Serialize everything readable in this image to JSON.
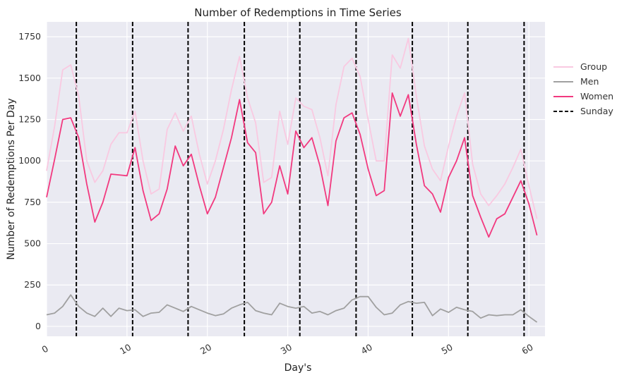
{
  "chart_data": {
    "type": "line",
    "title": "Number of Redemptions in Time Series",
    "xlabel": "Day's",
    "ylabel": "Number of Redemptions Per Day",
    "xlim": [
      0,
      62
    ],
    "ylim": [
      -60,
      1840
    ],
    "xticks": [
      0,
      10,
      20,
      30,
      40,
      50,
      60
    ],
    "yticks": [
      0,
      250,
      500,
      750,
      1000,
      1250,
      1500,
      1750
    ],
    "grid": true,
    "legend_position": "right",
    "background": "#EAEAF2",
    "sunday_label": "Sunday",
    "sundays": [
      3.7,
      10.7,
      17.6,
      24.6,
      31.5,
      38.5,
      45.5,
      52.4,
      59.4
    ],
    "series": [
      {
        "name": "Group",
        "color": "#F9C9E1",
        "values": [
          940,
          1210,
          1550,
          1580,
          1390,
          1000,
          870,
          940,
          1100,
          1170,
          1170,
          1300,
          1000,
          800,
          830,
          1190,
          1290,
          1180,
          1270,
          1040,
          860,
          1000,
          1190,
          1430,
          1630,
          1380,
          1230,
          870,
          900,
          1300,
          1100,
          1380,
          1330,
          1310,
          1140,
          910,
          1340,
          1570,
          1620,
          1510,
          1250,
          1000,
          1000,
          1640,
          1560,
          1740,
          1390,
          1090,
          950,
          880,
          1090,
          1270,
          1410,
          980,
          800,
          730,
          790,
          860,
          960,
          1070,
          850,
          650
        ]
      },
      {
        "name": "Men",
        "color": "#A0A0A0",
        "values": [
          70,
          80,
          120,
          190,
          120,
          80,
          60,
          110,
          60,
          110,
          95,
          100,
          60,
          80,
          85,
          130,
          110,
          90,
          120,
          100,
          80,
          65,
          75,
          110,
          130,
          145,
          95,
          80,
          70,
          140,
          120,
          110,
          120,
          80,
          90,
          70,
          95,
          110,
          160,
          180,
          180,
          115,
          70,
          80,
          130,
          150,
          140,
          145,
          65,
          105,
          85,
          115,
          100,
          90,
          50,
          70,
          65,
          70,
          70,
          100,
          60,
          25
        ]
      },
      {
        "name": "Women",
        "color": "#F2397F",
        "values": [
          780,
          1010,
          1250,
          1260,
          1140,
          860,
          630,
          750,
          920,
          915,
          910,
          1080,
          820,
          640,
          680,
          830,
          1090,
          970,
          1040,
          850,
          680,
          780,
          960,
          1140,
          1370,
          1110,
          1050,
          680,
          750,
          970,
          800,
          1180,
          1080,
          1140,
          970,
          730,
          1120,
          1260,
          1290,
          1160,
          950,
          790,
          820,
          1410,
          1270,
          1400,
          1100,
          850,
          800,
          690,
          900,
          1000,
          1140,
          790,
          660,
          540,
          650,
          680,
          780,
          880,
          740,
          550
        ]
      },
      {
        "name": "Sunday",
        "color": "#000000",
        "style": "dashed"
      }
    ]
  }
}
